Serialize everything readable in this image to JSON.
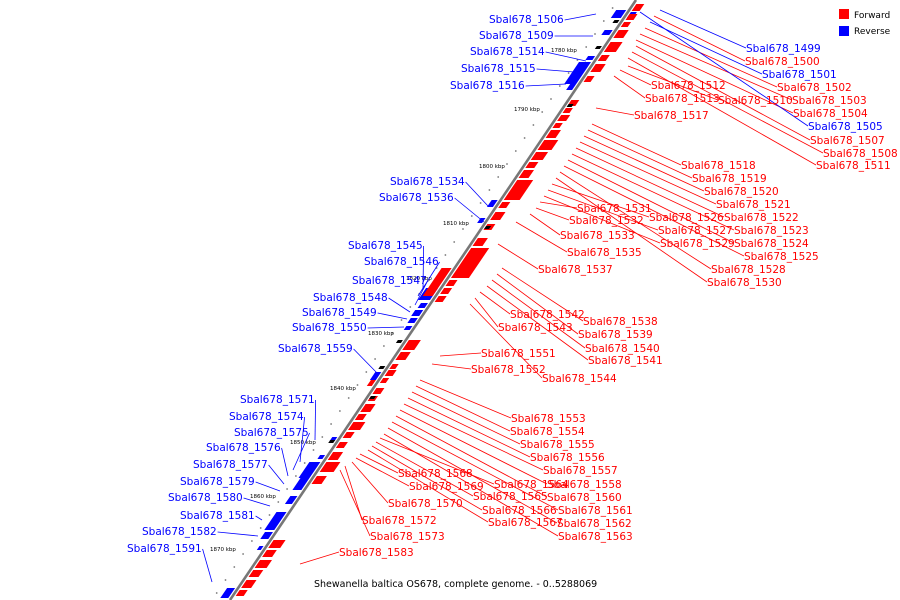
{
  "caption": "Shewanella baltica OS678, complete genome. - 0..5288069",
  "legend": {
    "forward_label": "Forward",
    "reverse_label": "Reverse",
    "forward_color": "#ff0000",
    "reverse_color": "#0000ff"
  },
  "axis": {
    "color": "#777777",
    "ticks": [
      "1780 kbp",
      "1790 kbp",
      "1800 kbp",
      "1810 kbp",
      "1820 kbp",
      "1830 kbp",
      "1840 kbp",
      "1850 kbp",
      "1860 kbp",
      "1870 kbp"
    ]
  },
  "reverse_genes": [
    "Sbal678_1506",
    "Sbal678_1509",
    "Sbal678_1514",
    "Sbal678_1515",
    "Sbal678_1516",
    "Sbal678_1534",
    "Sbal678_1536",
    "Sbal678_1545",
    "Sbal678_1546",
    "Sbal678_1547",
    "Sbal678_1548",
    "Sbal678_1549",
    "Sbal678_1550",
    "Sbal678_1559",
    "Sbal678_1571",
    "Sbal678_1574",
    "Sbal678_1575",
    "Sbal678_1576",
    "Sbal678_1577",
    "Sbal678_1579",
    "Sbal678_1580",
    "Sbal678_1581",
    "Sbal678_1582",
    "Sbal678_1591"
  ],
  "top_right_genes": [
    {
      "label": "Sbal678_1499",
      "strand": "reverse"
    },
    {
      "label": "Sbal678_1500",
      "strand": "forward"
    },
    {
      "label": "Sbal678_1501",
      "strand": "reverse"
    },
    {
      "label": "Sbal678_1502",
      "strand": "forward"
    },
    {
      "label": "Sbal678_1503",
      "strand": "forward"
    },
    {
      "label": "Sbal678_1504",
      "strand": "forward"
    },
    {
      "label": "Sbal678_1505",
      "strand": "reverse"
    },
    {
      "label": "Sbal678_1507",
      "strand": "forward"
    },
    {
      "label": "Sbal678_1508",
      "strand": "forward"
    },
    {
      "label": "Sbal678_1511",
      "strand": "forward"
    },
    {
      "label": "Sbal678_1510",
      "strand": "forward"
    },
    {
      "label": "Sbal678_1512",
      "strand": "forward"
    },
    {
      "label": "Sbal678_1513",
      "strand": "forward"
    },
    {
      "label": "Sbal678_1517",
      "strand": "forward"
    }
  ],
  "forward_genes_mid": [
    "Sbal678_1518",
    "Sbal678_1519",
    "Sbal678_1520",
    "Sbal678_1521",
    "Sbal678_1522",
    "Sbal678_1523",
    "Sbal678_1524",
    "Sbal678_1525",
    "Sbal678_1528",
    "Sbal678_1530",
    "Sbal678_1526",
    "Sbal678_1527",
    "Sbal678_1529",
    "Sbal678_1531",
    "Sbal678_1532",
    "Sbal678_1533",
    "Sbal678_1535",
    "Sbal678_1537"
  ],
  "forward_genes_lower": [
    "Sbal678_1538",
    "Sbal678_1539",
    "Sbal678_1540",
    "Sbal678_1541",
    "Sbal678_1542",
    "Sbal678_1543",
    "Sbal678_1544",
    "Sbal678_1551",
    "Sbal678_1552"
  ],
  "forward_genes_bottom": [
    "Sbal678_1553",
    "Sbal678_1554",
    "Sbal678_1555",
    "Sbal678_1556",
    "Sbal678_1557",
    "Sbal678_1558",
    "Sbal678_1560",
    "Sbal678_1561",
    "Sbal678_1562",
    "Sbal678_1563",
    "Sbal678_1564",
    "Sbal678_1565",
    "Sbal678_1566",
    "Sbal678_1567",
    "Sbal678_1568",
    "Sbal678_1569",
    "Sbal678_1570",
    "Sbal678_1572",
    "Sbal678_1573",
    "Sbal678_1583"
  ]
}
